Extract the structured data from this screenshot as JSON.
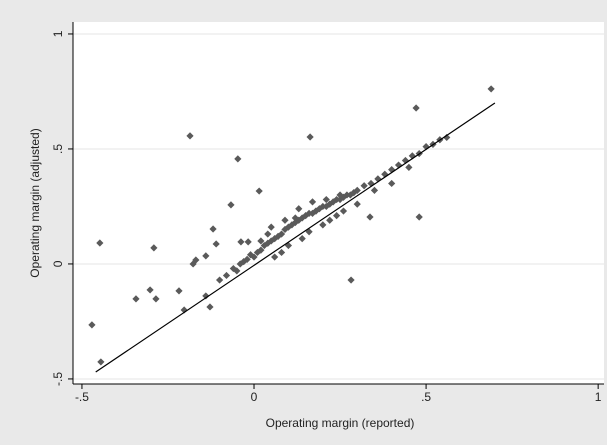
{
  "chart_data": {
    "type": "scatter",
    "x_label": "Operating margin (reported)",
    "y_label": "Operating margin (adjusted)",
    "xlim": [
      -0.526,
      1.017
    ],
    "ylim": [
      -0.522,
      1.052
    ],
    "xticks": [
      {
        "value": -0.5,
        "label": "-.5"
      },
      0,
      {
        "value": 0.5,
        "label": ".5"
      },
      1
    ],
    "yticks": [
      {
        "value": -0.5,
        "label": "-.5"
      },
      0,
      {
        "value": 0.5,
        "label": ".5"
      },
      1
    ],
    "grid": true,
    "color": "#5a5a5a",
    "x": [
      0.689,
      0.471,
      -0.186,
      0.163,
      -0.047,
      -0.448,
      -0.291,
      -0.471,
      -0.445,
      -0.343,
      -0.302,
      -0.285,
      -0.218,
      -0.203,
      -0.177,
      -0.14,
      -0.119,
      -0.11,
      -0.067,
      0.015,
      0.282,
      0.48,
      0.337,
      -0.14,
      -0.128,
      -0.038,
      -0.017,
      -0.169,
      -0.1,
      -0.08,
      -0.06,
      -0.05,
      -0.04,
      -0.03,
      -0.02,
      -0.01,
      0.0,
      0.01,
      0.02,
      0.03,
      0.04,
      0.05,
      0.06,
      0.07,
      0.08,
      0.09,
      0.1,
      0.11,
      0.12,
      0.13,
      0.14,
      0.15,
      0.16,
      0.17,
      0.18,
      0.19,
      0.2,
      0.21,
      0.22,
      0.23,
      0.24,
      0.25,
      0.26,
      0.27,
      0.28,
      0.29,
      0.3,
      0.32,
      0.34,
      0.36,
      0.38,
      0.4,
      0.42,
      0.44,
      0.46,
      0.48,
      0.5,
      0.52,
      0.54,
      0.56,
      0.02,
      0.04,
      0.06,
      0.08,
      0.1,
      0.12,
      0.14,
      0.16,
      0.18,
      0.2,
      0.22,
      0.24,
      0.26,
      0.3,
      0.35,
      0.4,
      0.45,
      0.05,
      0.09,
      0.13,
      0.17,
      0.21,
      0.25
    ],
    "values": [
      0.761,
      0.678,
      0.557,
      0.552,
      0.457,
      0.091,
      0.07,
      -0.265,
      -0.426,
      -0.152,
      -0.113,
      -0.152,
      -0.117,
      -0.2,
      0.0,
      0.035,
      0.152,
      0.087,
      0.257,
      0.317,
      -0.07,
      0.204,
      0.204,
      -0.139,
      -0.187,
      0.096,
      0.096,
      0.017,
      -0.07,
      -0.05,
      -0.02,
      -0.03,
      0.0,
      0.01,
      0.02,
      0.04,
      0.03,
      0.05,
      0.06,
      0.08,
      0.09,
      0.1,
      0.11,
      0.12,
      0.13,
      0.15,
      0.16,
      0.17,
      0.18,
      0.19,
      0.2,
      0.21,
      0.22,
      0.22,
      0.23,
      0.24,
      0.25,
      0.25,
      0.26,
      0.27,
      0.28,
      0.28,
      0.29,
      0.3,
      0.3,
      0.31,
      0.32,
      0.34,
      0.35,
      0.37,
      0.39,
      0.41,
      0.43,
      0.45,
      0.47,
      0.48,
      0.51,
      0.52,
      0.54,
      0.55,
      0.1,
      0.13,
      0.03,
      0.05,
      0.08,
      0.2,
      0.11,
      0.14,
      0.23,
      0.17,
      0.19,
      0.21,
      0.23,
      0.26,
      0.32,
      0.35,
      0.42,
      0.16,
      0.19,
      0.24,
      0.27,
      0.28,
      0.3
    ],
    "fit_line": {
      "x": [
        -0.46,
        0.7
      ],
      "values": [
        -0.47,
        0.7
      ],
      "color": "#000000"
    }
  }
}
